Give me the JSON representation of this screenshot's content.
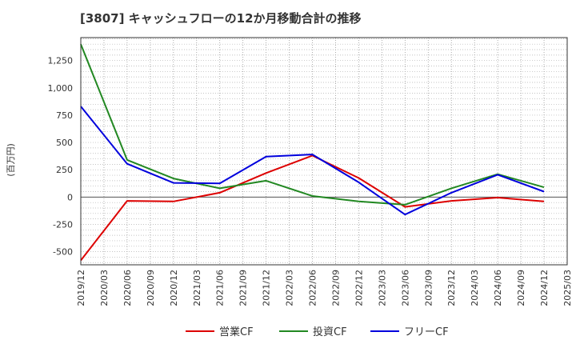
{
  "chart_data": {
    "type": "line",
    "title": "[3807]  キャッシュフローの12か月移動合計の推移",
    "ylabel": "(百万円)",
    "xlabel": "",
    "ylim": [
      -620,
      1460
    ],
    "yticks": [
      -500,
      -250,
      0,
      250,
      500,
      750,
      1000,
      1250
    ],
    "ytick_labels": [
      "-500",
      "-250",
      "0",
      "250",
      "500",
      "750",
      "1,000",
      "1,250"
    ],
    "x_ticks": [
      "2019/12",
      "2020/03",
      "2020/06",
      "2020/09",
      "2020/12",
      "2021/03",
      "2021/06",
      "2021/09",
      "2021/12",
      "2022/03",
      "2022/06",
      "2022/09",
      "2022/12",
      "2023/03",
      "2023/06",
      "2023/09",
      "2023/12",
      "2024/03",
      "2024/06",
      "2024/09",
      "2024/12",
      "2025/03"
    ],
    "series": [
      {
        "name": "営業CF",
        "color": "#dd0000",
        "x": [
          "2019/12",
          "2020/06",
          "2020/12",
          "2021/06",
          "2021/12",
          "2022/06",
          "2022/12",
          "2023/06",
          "2023/12",
          "2024/06",
          "2024/12"
        ],
        "values": [
          -580,
          -35,
          -40,
          40,
          220,
          380,
          175,
          -90,
          -35,
          -5,
          -40
        ]
      },
      {
        "name": "投資CF",
        "color": "#228822",
        "x": [
          "2019/12",
          "2020/06",
          "2020/12",
          "2021/06",
          "2021/12",
          "2022/06",
          "2022/12",
          "2023/06",
          "2023/12",
          "2024/06",
          "2024/12"
        ],
        "values": [
          1400,
          340,
          170,
          80,
          150,
          10,
          -40,
          -70,
          80,
          210,
          90
        ]
      },
      {
        "name": "フリーCF",
        "color": "#0000dd",
        "x": [
          "2019/12",
          "2020/06",
          "2020/12",
          "2021/06",
          "2021/12",
          "2022/06",
          "2022/12",
          "2023/06",
          "2023/12",
          "2024/06",
          "2024/12"
        ],
        "values": [
          830,
          305,
          130,
          125,
          370,
          390,
          135,
          -160,
          40,
          205,
          50
        ]
      }
    ],
    "legend_position": "bottom",
    "grid": true
  }
}
